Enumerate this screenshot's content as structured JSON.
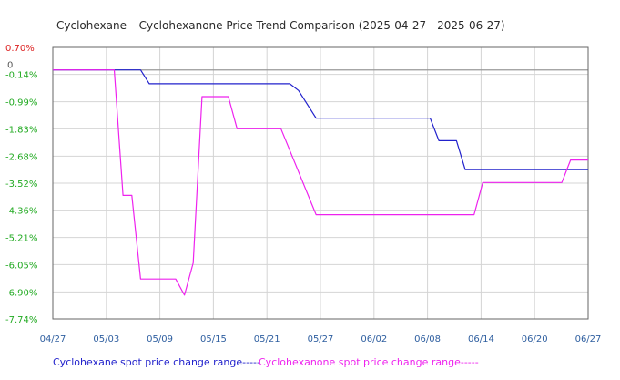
{
  "chart_data": {
    "type": "line",
    "title": "Cyclohexane – Cyclohexanone Price Trend Comparison (2025-04-27 - 2025-06-27)",
    "xlabel": "",
    "ylabel": "",
    "x_ticks": [
      "04/27",
      "05/03",
      "05/09",
      "05/15",
      "05/21",
      "05/27",
      "06/02",
      "06/08",
      "06/14",
      "06/20",
      "06/27"
    ],
    "x_range": [
      "2025-04-27",
      "2025-06-27"
    ],
    "y_ticks": [
      {
        "value": 0.7,
        "label": "0.70%"
      },
      {
        "value": 0,
        "label": "0"
      },
      {
        "value": -0.14,
        "label": "-0.14%"
      },
      {
        "value": -0.99,
        "label": "-0.99%"
      },
      {
        "value": -1.83,
        "label": "-1.83%"
      },
      {
        "value": -2.68,
        "label": "-2.68%"
      },
      {
        "value": -3.52,
        "label": "-3.52%"
      },
      {
        "value": -4.36,
        "label": "-4.36%"
      },
      {
        "value": -5.21,
        "label": "-5.21%"
      },
      {
        "value": -6.05,
        "label": "-6.05%"
      },
      {
        "value": -6.9,
        "label": "-6.90%"
      },
      {
        "value": -7.74,
        "label": "-7.74%"
      }
    ],
    "ylim": [
      -7.74,
      0.7
    ],
    "grid": true,
    "legend_position": "bottom",
    "series": [
      {
        "name": "Cyclohexane spot price change range-----",
        "color": "#2222cc",
        "points": [
          [
            "2025-04-27",
            0
          ],
          [
            "2025-05-07",
            0
          ],
          [
            "2025-05-08",
            -0.43
          ],
          [
            "2025-05-24",
            -0.43
          ],
          [
            "2025-05-25",
            -0.64
          ],
          [
            "2025-05-27",
            -1.5
          ],
          [
            "2025-06-09",
            -1.5
          ],
          [
            "2025-06-10",
            -2.2
          ],
          [
            "2025-06-12",
            -2.2
          ],
          [
            "2025-06-13",
            -3.1
          ],
          [
            "2025-06-27",
            -3.1
          ]
        ]
      },
      {
        "name": "Cyclohexanone spot price change range-----",
        "color": "#ee22ee",
        "points": [
          [
            "2025-04-27",
            0
          ],
          [
            "2025-05-04",
            0
          ],
          [
            "2025-05-05",
            -3.9
          ],
          [
            "2025-05-06",
            -3.9
          ],
          [
            "2025-05-07",
            -6.5
          ],
          [
            "2025-05-11",
            -6.5
          ],
          [
            "2025-05-12",
            -7.0
          ],
          [
            "2025-05-13",
            -6.0
          ],
          [
            "2025-05-14",
            -0.83
          ],
          [
            "2025-05-17",
            -0.83
          ],
          [
            "2025-05-18",
            -1.83
          ],
          [
            "2025-05-23",
            -1.83
          ],
          [
            "2025-05-27",
            -4.5
          ],
          [
            "2025-06-14",
            -4.5
          ],
          [
            "2025-06-15",
            -3.5
          ],
          [
            "2025-06-24",
            -3.5
          ],
          [
            "2025-06-25",
            -2.8
          ],
          [
            "2025-06-27",
            -2.8
          ]
        ]
      }
    ]
  },
  "colors": {
    "ytick_positive": "#dd2222",
    "ytick_zero": "#555555",
    "ytick_negative": "#22aa22",
    "grid": "#d4d4d4",
    "axis": "#666666",
    "zero_line": "#999999"
  }
}
